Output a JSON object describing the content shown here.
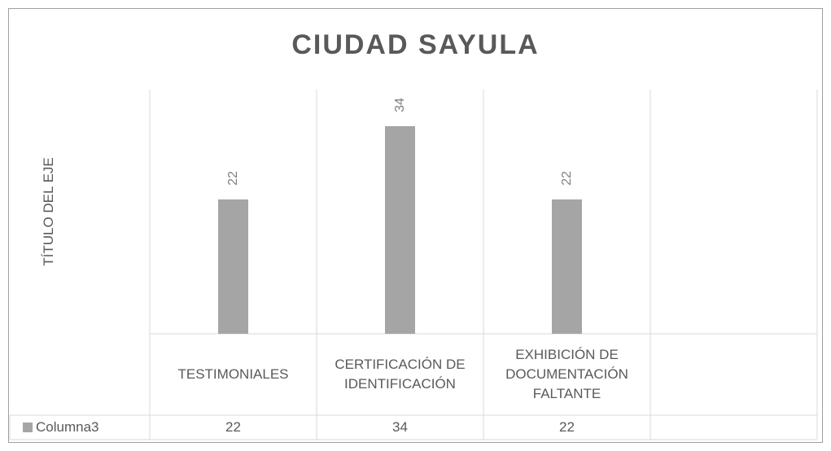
{
  "chart_data": {
    "type": "bar",
    "title": "CIUDAD SAYULA",
    "y_label": "TÍTULO DEL EJE",
    "categories": [
      "TESTIMONIALES",
      "CERTIFICACIÓN DE IDENTIFICACIÓN",
      "EXHIBICIÓN DE DOCUMENTACIÓN FALTANTE",
      null
    ],
    "series": [
      {
        "name": "Columna3",
        "color": "#a5a5a5",
        "values": [
          22,
          34,
          22,
          null
        ]
      }
    ],
    "ylim": [
      0,
      40
    ],
    "grid": true,
    "data_table": true
  }
}
